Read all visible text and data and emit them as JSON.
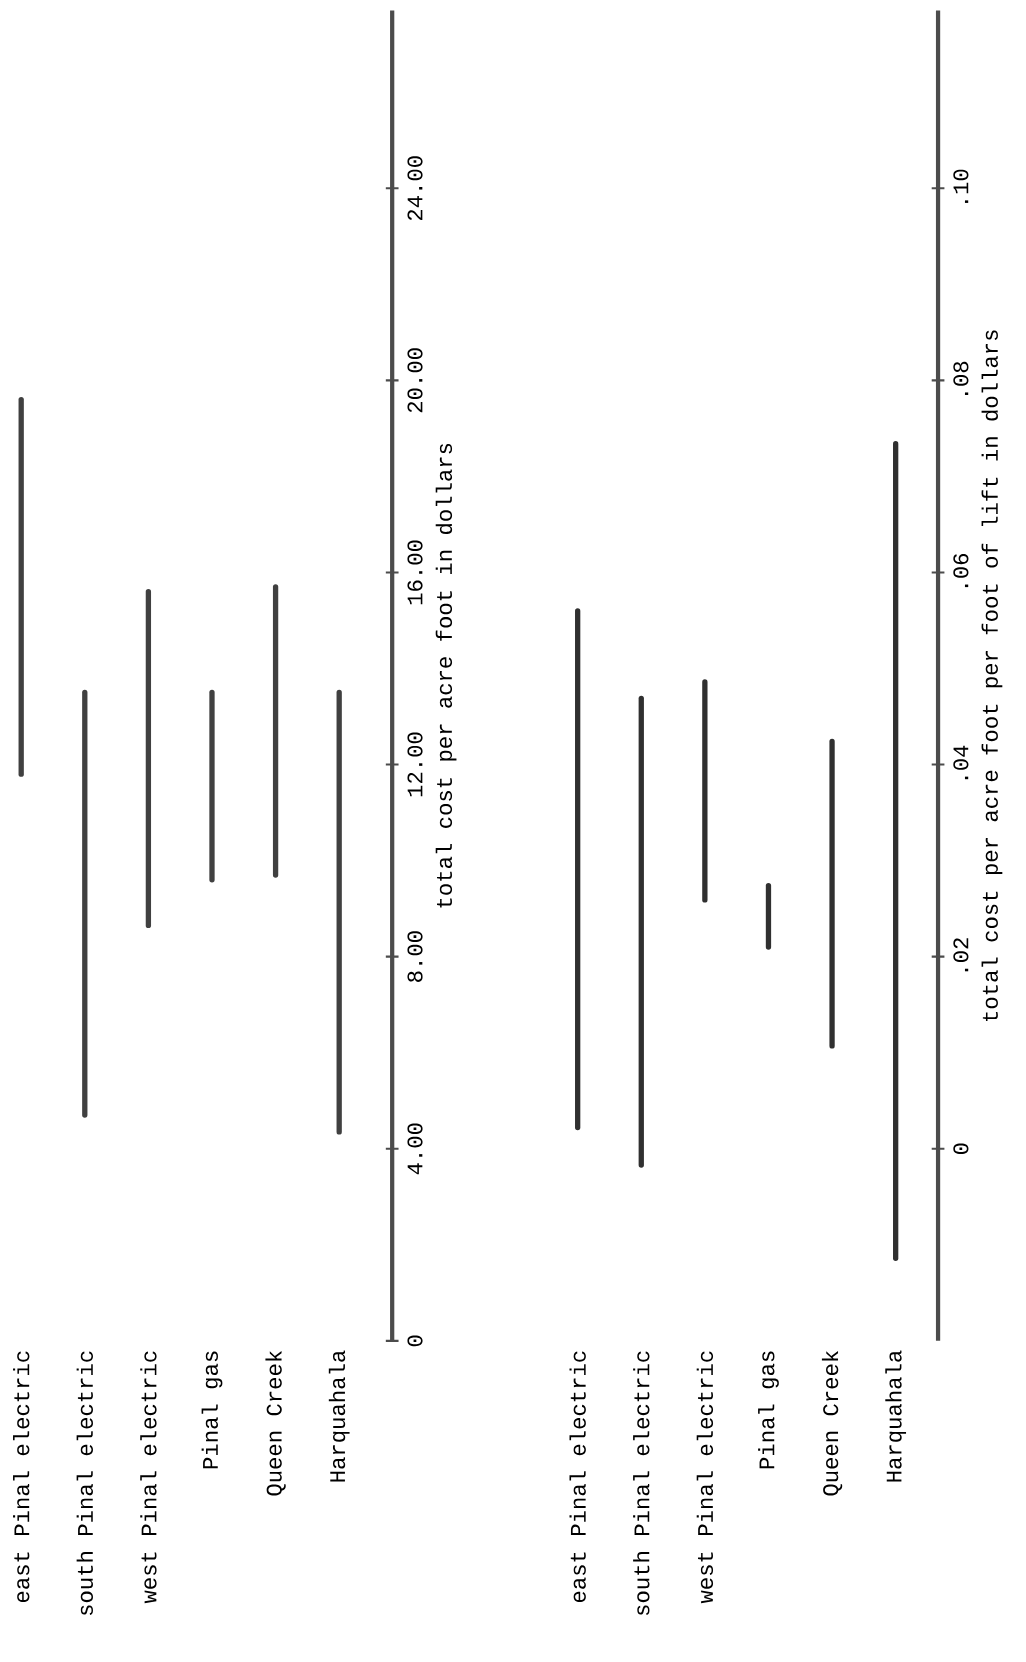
{
  "chart_data": [
    {
      "type": "bar",
      "categories": [
        "east Pinal electric",
        "south Pinal electric",
        "west Pinal electric",
        "Pinal gas",
        "Queen Creek",
        "Harquahala"
      ],
      "series": [
        {
          "color": "#404040",
          "base": [
            11.8,
            4.7,
            8.65,
            9.6,
            9.7,
            4.35
          ],
          "values": [
            7.8,
            8.8,
            6.95,
            3.9,
            6.0,
            9.15
          ]
        }
      ],
      "ylabel": "total cost per acre foot in dollars",
      "ylim": [
        0,
        27.7
      ],
      "yticks": [
        0,
        {
          "value": 4,
          "label": "4.00"
        },
        {
          "value": 8,
          "label": "8.00"
        },
        {
          "value": 12,
          "label": "12.00"
        },
        {
          "value": 16,
          "label": "16.00"
        },
        {
          "value": 20,
          "label": "20.00"
        },
        {
          "value": 24,
          "label": "24.00"
        }
      ]
    },
    {
      "type": "bar",
      "categories": [
        "east Pinal electric",
        "south Pinal electric",
        "west Pinal electric",
        "Pinal gas",
        "Queen Creek",
        "Harquahala"
      ],
      "series": [
        {
          "color": "#303030",
          "base": [
            0.0022,
            -0.0017,
            0.0259,
            0.021,
            0.0107,
            -0.0114
          ],
          "values": [
            0.0538,
            0.0486,
            0.0227,
            0.0064,
            0.0317,
            0.0848
          ]
        }
      ],
      "ylabel": "total cost per acre foot per foot of lift in dollars",
      "ylim": [
        -0.02,
        0.1185
      ],
      "yticks": [
        0,
        {
          "value": 0.02,
          "label": ".02"
        },
        {
          "value": 0.04,
          "label": ".04"
        },
        {
          "value": 0.06,
          "label": ".06"
        },
        {
          "value": 0.08,
          "label": ".08"
        },
        {
          "value": 0.1,
          "label": ".10"
        }
      ]
    }
  ]
}
